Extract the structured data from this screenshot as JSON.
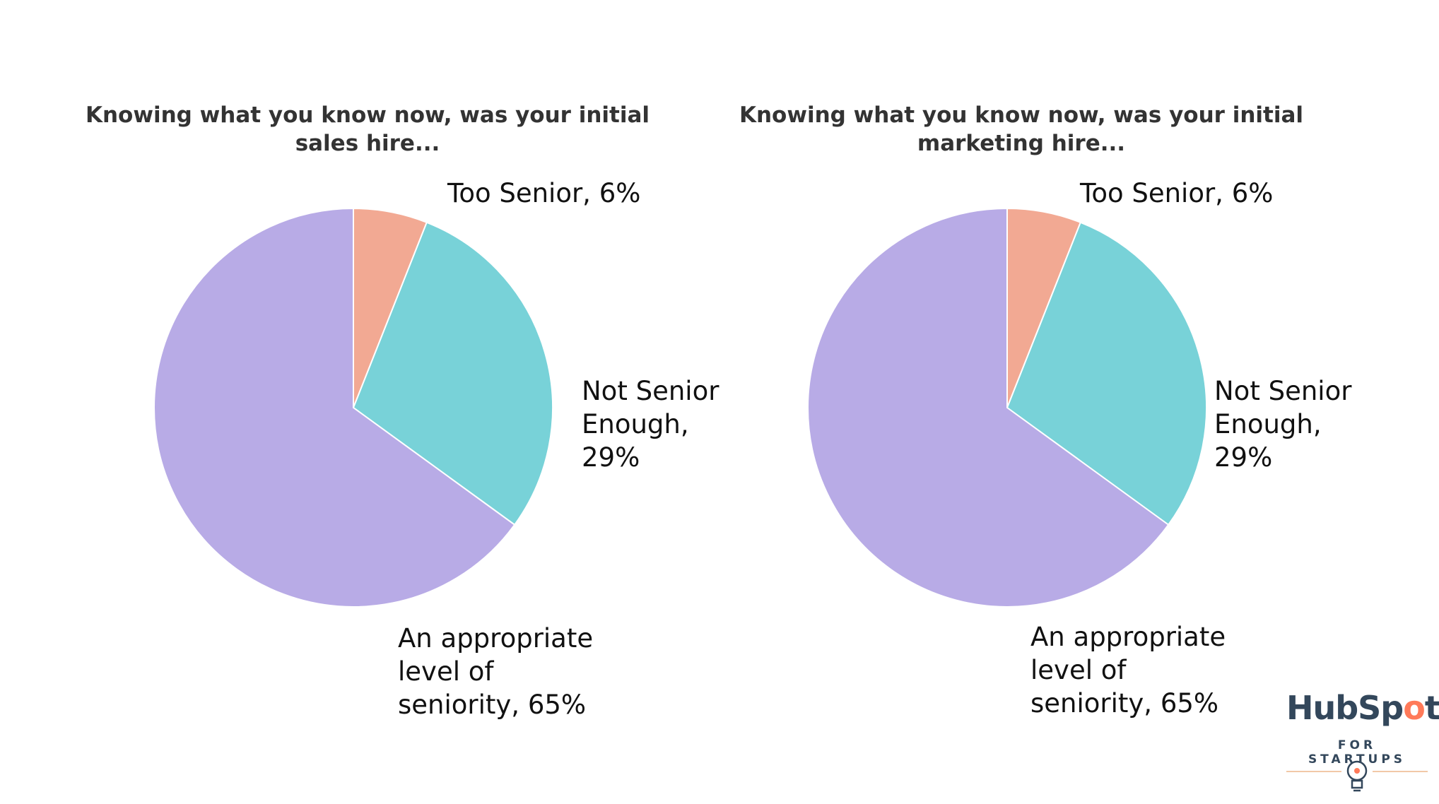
{
  "chart_data": [
    {
      "type": "pie",
      "title_lines": [
        "Knowing what you know now, was your initial",
        "sales hire..."
      ],
      "slices": [
        {
          "label": "Too Senior, 6%",
          "value": 6,
          "color": "#f2a993"
        },
        {
          "label": "Not Senior\nEnough,\n29%",
          "value": 29,
          "color": "#78d2d8"
        },
        {
          "label": "An appropriate\nlevel of\nseniority, 65%",
          "value": 65,
          "color": "#b8abe6"
        }
      ]
    },
    {
      "type": "pie",
      "title_lines": [
        "Knowing what you know now, was your initial",
        "marketing hire..."
      ],
      "slices": [
        {
          "label": "Too Senior, 6%",
          "value": 6,
          "color": "#f2a993"
        },
        {
          "label": "Not Senior\nEnough,\n29%",
          "value": 29,
          "color": "#78d2d8"
        },
        {
          "label": "An appropriate\nlevel of\nseniority, 65%",
          "value": 65,
          "color": "#b8abe6"
        }
      ]
    }
  ],
  "logo": {
    "word_prefix": "HubSp",
    "word_o": "o",
    "word_suffix": "t",
    "subtitle": "FOR STARTUPS",
    "brand_color": "#ff7a59",
    "text_color": "#33475b"
  }
}
